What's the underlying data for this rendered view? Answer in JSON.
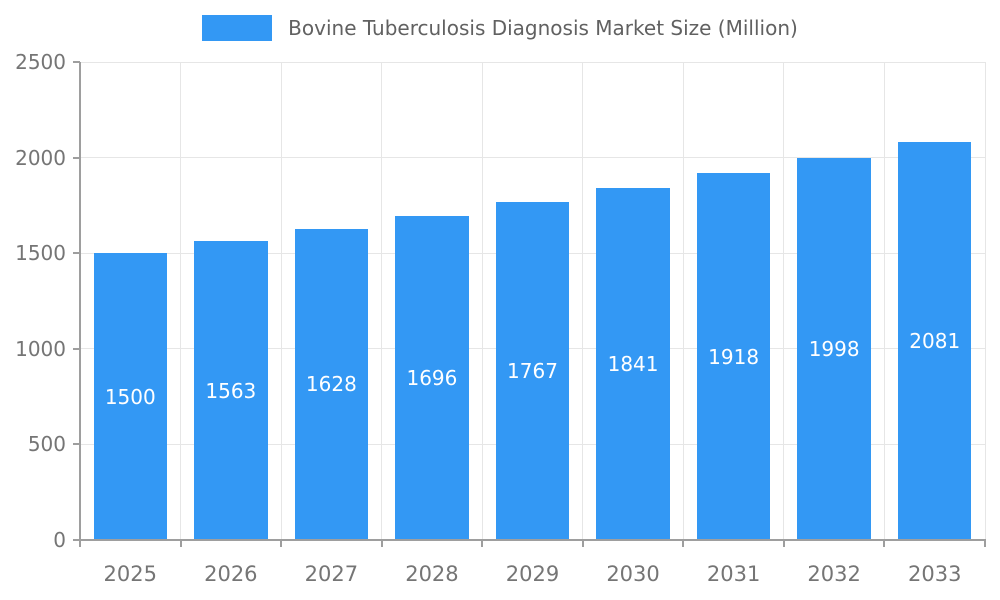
{
  "chart_data": {
    "type": "bar",
    "title": "Bovine Tuberculosis Diagnosis Market Size (Million)",
    "categories": [
      "2025",
      "2026",
      "2027",
      "2028",
      "2029",
      "2030",
      "2031",
      "2032",
      "2033"
    ],
    "values": [
      1500,
      1563,
      1628,
      1696,
      1767,
      1841,
      1918,
      1998,
      2081
    ],
    "xlabel": "",
    "ylabel": "",
    "ylim": [
      0,
      2500
    ],
    "yticks": [
      0,
      500,
      1000,
      1500,
      2000,
      2500
    ],
    "grid": true,
    "legend_position": "top",
    "value_labels": "inside-center",
    "colors": {
      "bar": "#3398F4",
      "value_label": "#FFFFFF",
      "grid": "#E6E6E6",
      "axis": "#9E9E9E",
      "tick_text": "#757575",
      "title_text": "#616161",
      "background": "#FFFFFF"
    }
  }
}
